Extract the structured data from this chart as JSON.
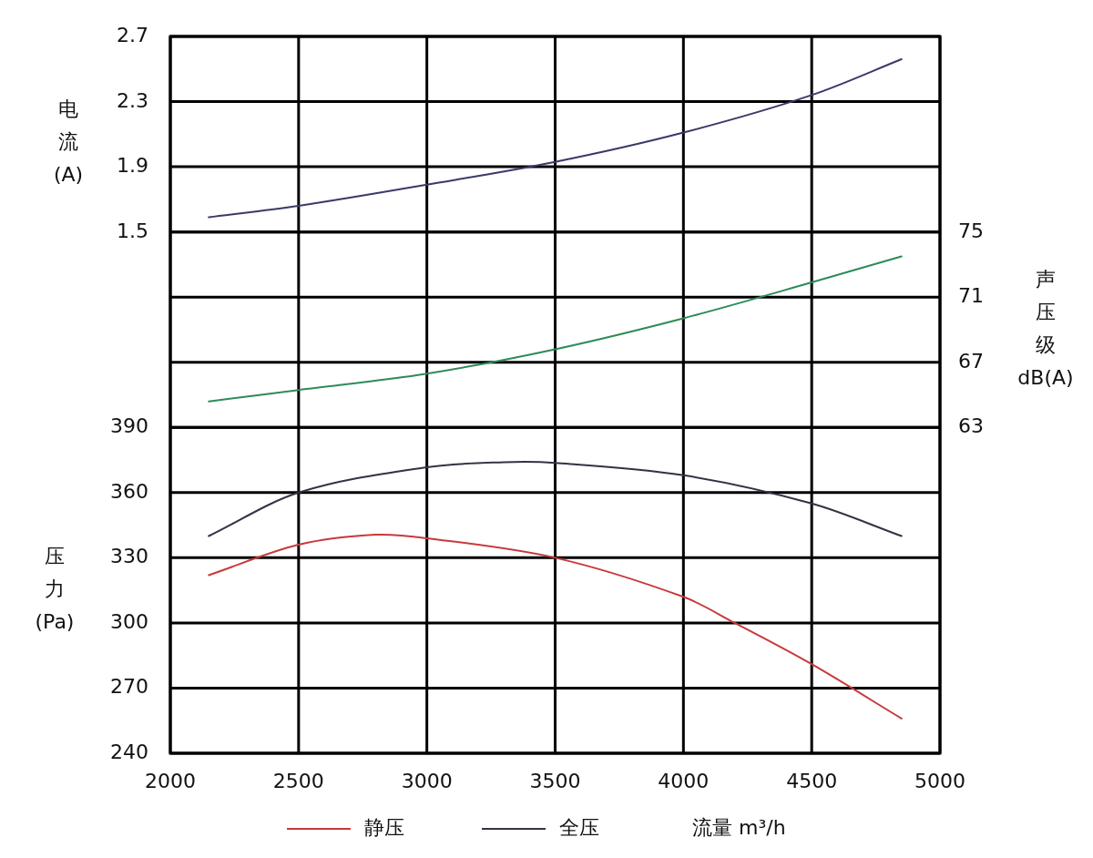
{
  "chart_data": {
    "type": "line",
    "xlabel": "流量 m³/h",
    "ylabel": "压力(Pa)",
    "y2label": "声压级dB(A)",
    "y3label": "电流(A)",
    "xlim": [
      2000,
      5000
    ],
    "xticks": [
      2000,
      2500,
      3000,
      3500,
      4000,
      4500,
      5000
    ],
    "ylim": [
      240,
      570
    ],
    "yticks": [
      240,
      270,
      300,
      330,
      360,
      390
    ],
    "y2lim": [
      43,
      87
    ],
    "y2ticks": [
      63,
      67,
      71,
      75
    ],
    "y3lim": [
      -1.7,
      2.7
    ],
    "y3ticks": [
      1.5,
      1.9,
      2.3,
      2.7
    ],
    "grid": true,
    "legend": "bottom",
    "series": [
      {
        "name": "静压",
        "color": "#c8393b",
        "x": [
          2150,
          2500,
          2800,
          3000,
          3500,
          4000,
          4200,
          4500,
          4850
        ],
        "values": [
          322,
          336,
          340.6,
          339,
          330,
          312,
          300,
          281,
          256
        ]
      },
      {
        "name": "全压",
        "color": "#333344",
        "x": [
          2150,
          2500,
          3000,
          3300,
          3500,
          4000,
          4500,
          4850
        ],
        "values": [
          340,
          360,
          371.7,
          374,
          373.7,
          368,
          355,
          340
        ]
      },
      {
        "axis": "y2",
        "color": "#2e8b57",
        "x": [
          2150,
          2500,
          3000,
          3500,
          4000,
          4500,
          4850
        ],
        "values": [
          64.6,
          65.3,
          66.3,
          67.8,
          69.7,
          71.9,
          73.5
        ]
      },
      {
        "axis": "y3",
        "color": "#3a3a6a",
        "x": [
          2150,
          2500,
          3000,
          3500,
          4000,
          4500,
          4850
        ],
        "values": [
          1.59,
          1.66,
          1.79,
          1.93,
          2.11,
          2.34,
          2.56
        ]
      }
    ]
  }
}
